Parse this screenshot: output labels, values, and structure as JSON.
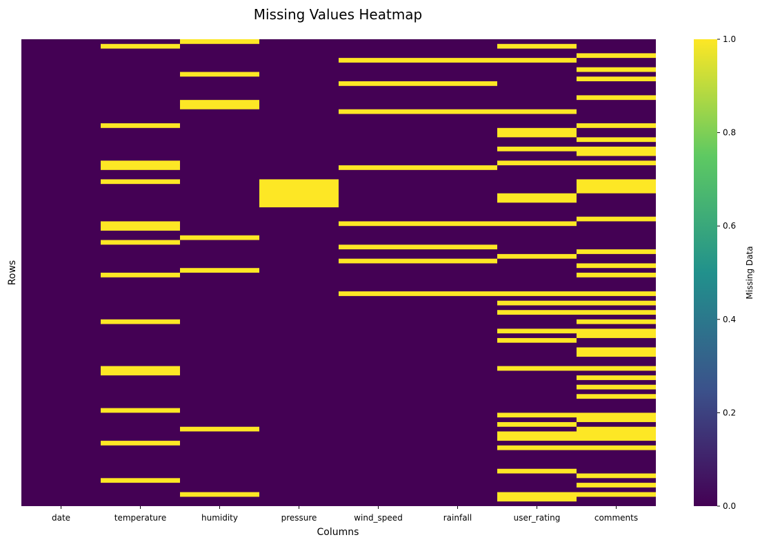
{
  "chart_data": {
    "type": "heatmap",
    "title": "Missing Values Heatmap",
    "xlabel": "Columns",
    "ylabel": "Rows",
    "columns": [
      "date",
      "temperature",
      "humidity",
      "pressure",
      "wind_speed",
      "rainfall",
      "user_rating",
      "comments"
    ],
    "n_rows": 100,
    "value_range": [
      0,
      1
    ],
    "missing_rows": {
      "date": [],
      "temperature": [
        1,
        18,
        26,
        27,
        30,
        39,
        40,
        43,
        50,
        60,
        70,
        71,
        79,
        86,
        94
      ],
      "humidity": [
        0,
        7,
        13,
        14,
        42,
        49,
        83,
        97
      ],
      "pressure": [
        30,
        31,
        32,
        33,
        34,
        35
      ],
      "wind_speed": [
        4,
        9,
        15,
        27,
        39,
        44,
        47,
        54
      ],
      "rainfall": [
        4,
        9,
        15,
        27,
        39,
        44,
        47,
        54
      ],
      "user_rating": [
        1,
        4,
        15,
        19,
        20,
        23,
        26,
        33,
        34,
        39,
        46,
        54,
        56,
        58,
        62,
        64,
        70,
        80,
        82,
        84,
        85,
        87,
        92,
        97,
        98
      ],
      "comments": [
        3,
        6,
        8,
        12,
        18,
        21,
        23,
        24,
        26,
        30,
        31,
        32,
        38,
        45,
        48,
        50,
        54,
        56,
        58,
        60,
        62,
        63,
        66,
        67,
        70,
        72,
        74,
        76,
        80,
        81,
        83,
        84,
        85,
        87,
        93,
        95,
        97
      ]
    },
    "colorbar": {
      "label": "Missing Data",
      "ticks": [
        "0.0",
        "0.2",
        "0.4",
        "0.6",
        "0.8",
        "1.0"
      ],
      "colors": [
        "#440154",
        "#3b528b",
        "#21918c",
        "#5ec962",
        "#fde725"
      ]
    },
    "colors": {
      "present": "#440154",
      "missing": "#fde725"
    }
  }
}
